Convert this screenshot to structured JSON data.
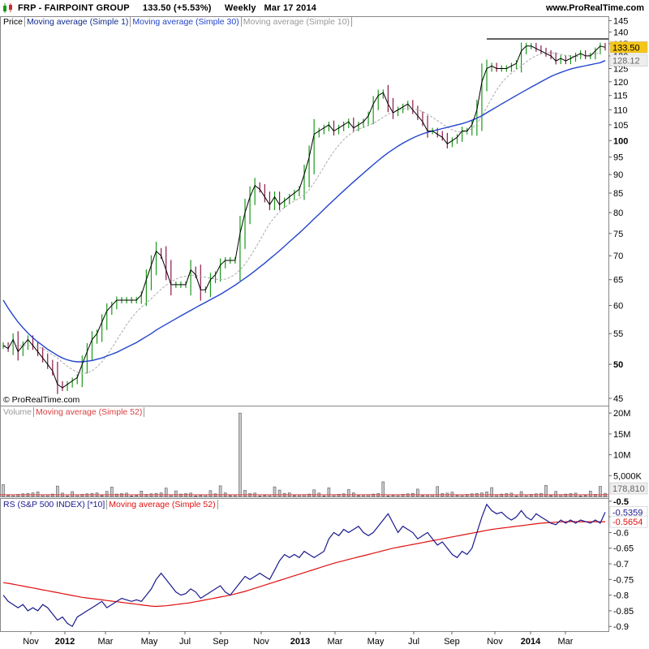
{
  "header": {
    "ticker": "FRP - FAIRPOINT GROUP",
    "last": "133.50 (+5.53%)",
    "period": "Weekly",
    "date": "Mar 17 2014",
    "site": "www.ProRealTime.com"
  },
  "copyright": "© ProRealTime.com",
  "colors": {
    "up": "#1a9a1a",
    "down": "#8b1a4a",
    "ma1": "#000000",
    "ma30": "#2244cc",
    "ma10": "#aaaaaa",
    "volume_ma": "#d94040",
    "rs": "#1a1a8c",
    "rs_ma": "#e01010"
  },
  "chart_data": [
    {
      "type": "line",
      "panel": "price",
      "legend": [
        "Price",
        "Moving average (Simple 1)",
        "Moving average (Simple 30)",
        "Moving average (Simple 10)"
      ],
      "y_ticks": [
        "145",
        "140",
        "135",
        "130",
        "125",
        "120",
        "115",
        "110",
        "105",
        "100",
        "95",
        "90",
        "85",
        "80",
        "75",
        "70",
        "65",
        "60",
        "55",
        "50",
        "45"
      ],
      "y_tick_values": [
        145,
        140,
        135,
        130,
        125,
        120,
        115,
        110,
        105,
        100,
        95,
        90,
        85,
        80,
        75,
        70,
        65,
        60,
        55,
        50,
        45
      ],
      "bold_ticks": [
        100,
        50
      ],
      "ylim": [
        44,
        147
      ],
      "scale": "log",
      "last_price_label": "133.50",
      "ma30_label": "128.12",
      "resistance_level": 137,
      "series": [
        {
          "name": "Moving average (Simple 1)",
          "values": [
            53,
            52.5,
            54,
            52,
            53,
            54,
            53,
            52,
            51,
            50,
            49,
            47,
            46.5,
            47,
            47.5,
            48,
            50,
            52,
            54,
            55,
            57,
            59,
            60,
            61,
            61,
            61,
            61,
            61,
            62,
            65,
            68,
            71,
            70,
            67,
            64,
            64,
            64,
            64,
            67,
            66,
            63,
            63,
            65,
            66,
            68,
            69,
            69,
            69,
            75,
            80,
            84,
            87,
            86,
            84,
            82,
            84,
            82,
            83,
            84,
            85,
            86,
            90,
            95,
            102,
            103,
            104,
            105,
            103,
            104,
            105,
            106,
            104,
            105,
            106,
            108,
            112,
            115,
            116,
            112,
            109,
            110,
            111,
            112,
            110,
            108,
            106,
            103,
            103,
            102,
            101,
            99,
            100,
            101,
            103,
            103,
            105,
            110,
            120,
            125,
            126,
            125,
            125,
            125,
            126,
            127,
            132,
            134,
            134,
            133,
            132,
            131,
            130,
            128,
            129,
            128,
            129,
            130,
            131,
            130,
            130,
            132,
            134,
            133.5
          ]
        },
        {
          "name": "Moving average (Simple 30)",
          "values": [
            61,
            59.5,
            58.2,
            57,
            56,
            55.1,
            54.3,
            53.6,
            53,
            52.4,
            51.9,
            51.4,
            51,
            50.7,
            50.5,
            50.4,
            50.4,
            50.5,
            50.6,
            50.8,
            51,
            51.3,
            51.6,
            51.9,
            52.3,
            52.7,
            53.1,
            53.5,
            54,
            54.5,
            55,
            55.6,
            56.1,
            56.6,
            57.1,
            57.6,
            58.1,
            58.6,
            59.1,
            59.6,
            60.1,
            60.6,
            61.1,
            61.6,
            62.1,
            62.7,
            63.3,
            63.9,
            64.6,
            65.3,
            66,
            66.8,
            67.6,
            68.4,
            69.3,
            70.2,
            71.1,
            72.1,
            73.1,
            74.1,
            75.1,
            76.2,
            77.3,
            78.5,
            79.6,
            80.8,
            82,
            83.2,
            84.4,
            85.6,
            86.8,
            88,
            89.2,
            90.4,
            91.6,
            92.8,
            94,
            95.2,
            96.3,
            97.3,
            98.3,
            99.2,
            100,
            100.8,
            101.5,
            102.1,
            102.6,
            103,
            103.4,
            103.8,
            104.2,
            104.6,
            105,
            105.4,
            105.9,
            106.5,
            107.2,
            108,
            109,
            110,
            111,
            112,
            113,
            114,
            115,
            116,
            117,
            118,
            119,
            120,
            121,
            122,
            122.8,
            123.5,
            124.2,
            124.8,
            125.3,
            125.7,
            126.1,
            126.5,
            126.9,
            127.3,
            128.12
          ]
        },
        {
          "name": "Moving average (Simple 10)",
          "values": [
            53,
            53,
            53,
            53,
            53,
            53,
            53,
            52.8,
            52.5,
            52,
            51.5,
            51,
            50.3,
            49.7,
            49.2,
            48.8,
            48.6,
            48.7,
            49,
            49.6,
            50.4,
            51.4,
            52.6,
            53.9,
            55.2,
            56.5,
            57.7,
            58.8,
            59.7,
            60.5,
            61.3,
            62.2,
            63.1,
            63.9,
            64.6,
            65.1,
            65.5,
            65.7,
            65.9,
            65.9,
            65.7,
            65.5,
            65.3,
            65.1,
            65,
            65.1,
            65.5,
            66.1,
            67,
            68.2,
            69.7,
            71.5,
            73.4,
            75.4,
            77.3,
            78.9,
            80.2,
            81.3,
            82.2,
            83,
            83.6,
            84.5,
            85.9,
            87.7,
            89.9,
            92.2,
            94.5,
            96.7,
            98.6,
            100.3,
            101.7,
            102.8,
            103.6,
            104.2,
            104.8,
            105.5,
            106.4,
            107.5,
            108.5,
            109.4,
            110,
            110.3,
            110.4,
            110.3,
            110,
            109.4,
            108.5,
            107.5,
            106.4,
            105.3,
            104.3,
            103.4,
            102.8,
            102.6,
            102.9,
            103.8,
            105.4,
            107.8,
            110.8,
            114,
            117,
            119.6,
            121.6,
            123.2,
            124.6,
            126,
            127.6,
            129,
            130.1,
            130.8,
            131.2,
            131.3,
            131,
            130.6,
            130.2,
            129.9,
            129.8,
            129.9,
            130.1,
            130.4,
            130.9,
            131.4
          ]
        }
      ],
      "x_ticks": [
        "Nov",
        "2012",
        "Mar",
        "May",
        "Jul",
        "Sep",
        "Nov",
        "2013",
        "Mar",
        "May",
        "Jul",
        "Sep",
        "Nov",
        "2014",
        "Mar"
      ],
      "bold_x_ticks": [
        "2012",
        "2013",
        "2014"
      ]
    },
    {
      "type": "bar",
      "panel": "volume",
      "legend": [
        "Volume",
        "Moving average (Simple 52)"
      ],
      "y_ticks": [
        "20M",
        "15M",
        "10M",
        "5,000K"
      ],
      "y_tick_values": [
        20000000,
        15000000,
        10000000,
        5000000
      ],
      "ylim": [
        0,
        21000000
      ],
      "last_label": "178,810",
      "spike_index": 48,
      "spike_value": 20000000
    },
    {
      "type": "line",
      "panel": "rs",
      "legend": [
        "RS (S&P 500 INDEX) [*10]",
        "Moving average (Simple 52)"
      ],
      "y_ticks": [
        "-0.5",
        "-0.55",
        "-0.6",
        "-0.65",
        "-0.7",
        "-0.75",
        "-0.8",
        "-0.85",
        "-0.9"
      ],
      "y_tick_values": [
        -0.5,
        -0.55,
        -0.6,
        -0.65,
        -0.7,
        -0.75,
        -0.8,
        -0.85,
        -0.9
      ],
      "bold_ticks": [
        -0.5
      ],
      "ylim": [
        -0.915,
        -0.49
      ],
      "rs_label": "-0.5359",
      "rs_ma_label": "-0.5654",
      "series": [
        {
          "name": "RS (S&P 500 INDEX) [*10]",
          "values": [
            -0.8,
            -0.82,
            -0.83,
            -0.84,
            -0.83,
            -0.85,
            -0.84,
            -0.85,
            -0.83,
            -0.84,
            -0.86,
            -0.88,
            -0.87,
            -0.89,
            -0.9,
            -0.87,
            -0.86,
            -0.85,
            -0.84,
            -0.83,
            -0.82,
            -0.84,
            -0.83,
            -0.82,
            -0.81,
            -0.815,
            -0.82,
            -0.815,
            -0.82,
            -0.8,
            -0.78,
            -0.75,
            -0.73,
            -0.75,
            -0.77,
            -0.79,
            -0.8,
            -0.795,
            -0.78,
            -0.79,
            -0.81,
            -0.8,
            -0.79,
            -0.78,
            -0.77,
            -0.79,
            -0.8,
            -0.78,
            -0.76,
            -0.74,
            -0.75,
            -0.74,
            -0.73,
            -0.74,
            -0.75,
            -0.72,
            -0.69,
            -0.67,
            -0.68,
            -0.67,
            -0.68,
            -0.66,
            -0.67,
            -0.68,
            -0.67,
            -0.66,
            -0.62,
            -0.6,
            -0.61,
            -0.59,
            -0.6,
            -0.59,
            -0.58,
            -0.6,
            -0.61,
            -0.6,
            -0.58,
            -0.56,
            -0.54,
            -0.57,
            -0.6,
            -0.58,
            -0.59,
            -0.6,
            -0.62,
            -0.61,
            -0.6,
            -0.62,
            -0.64,
            -0.63,
            -0.65,
            -0.67,
            -0.68,
            -0.66,
            -0.67,
            -0.65,
            -0.6,
            -0.55,
            -0.51,
            -0.53,
            -0.54,
            -0.535,
            -0.55,
            -0.56,
            -0.55,
            -0.53,
            -0.55,
            -0.56,
            -0.54,
            -0.55,
            -0.56,
            -0.57,
            -0.575,
            -0.56,
            -0.57,
            -0.56,
            -0.57,
            -0.56,
            -0.565,
            -0.57,
            -0.56,
            -0.57,
            -0.535
          ]
        },
        {
          "name": "Moving average (Simple 52)",
          "values": [
            -0.76,
            -0.762,
            -0.765,
            -0.768,
            -0.771,
            -0.774,
            -0.777,
            -0.78,
            -0.783,
            -0.786,
            -0.789,
            -0.792,
            -0.795,
            -0.798,
            -0.801,
            -0.804,
            -0.807,
            -0.809,
            -0.811,
            -0.813,
            -0.815,
            -0.817,
            -0.819,
            -0.821,
            -0.823,
            -0.825,
            -0.827,
            -0.829,
            -0.831,
            -0.833,
            -0.835,
            -0.836,
            -0.835,
            -0.834,
            -0.832,
            -0.83,
            -0.828,
            -0.826,
            -0.824,
            -0.821,
            -0.818,
            -0.815,
            -0.812,
            -0.809,
            -0.806,
            -0.803,
            -0.8,
            -0.796,
            -0.792,
            -0.788,
            -0.783,
            -0.778,
            -0.773,
            -0.768,
            -0.763,
            -0.758,
            -0.753,
            -0.748,
            -0.743,
            -0.738,
            -0.733,
            -0.728,
            -0.723,
            -0.718,
            -0.713,
            -0.708,
            -0.703,
            -0.698,
            -0.694,
            -0.69,
            -0.686,
            -0.682,
            -0.678,
            -0.674,
            -0.67,
            -0.666,
            -0.662,
            -0.658,
            -0.654,
            -0.65,
            -0.647,
            -0.644,
            -0.641,
            -0.638,
            -0.635,
            -0.632,
            -0.629,
            -0.626,
            -0.623,
            -0.62,
            -0.617,
            -0.614,
            -0.611,
            -0.608,
            -0.605,
            -0.602,
            -0.599,
            -0.596,
            -0.593,
            -0.59,
            -0.588,
            -0.586,
            -0.584,
            -0.582,
            -0.58,
            -0.578,
            -0.576,
            -0.574,
            -0.572,
            -0.57,
            -0.569,
            -0.568,
            -0.567,
            -0.566,
            -0.5655,
            -0.565,
            -0.5652,
            -0.5654,
            -0.5655,
            -0.5655,
            -0.5654,
            -0.5654,
            -0.5654
          ]
        }
      ]
    }
  ]
}
